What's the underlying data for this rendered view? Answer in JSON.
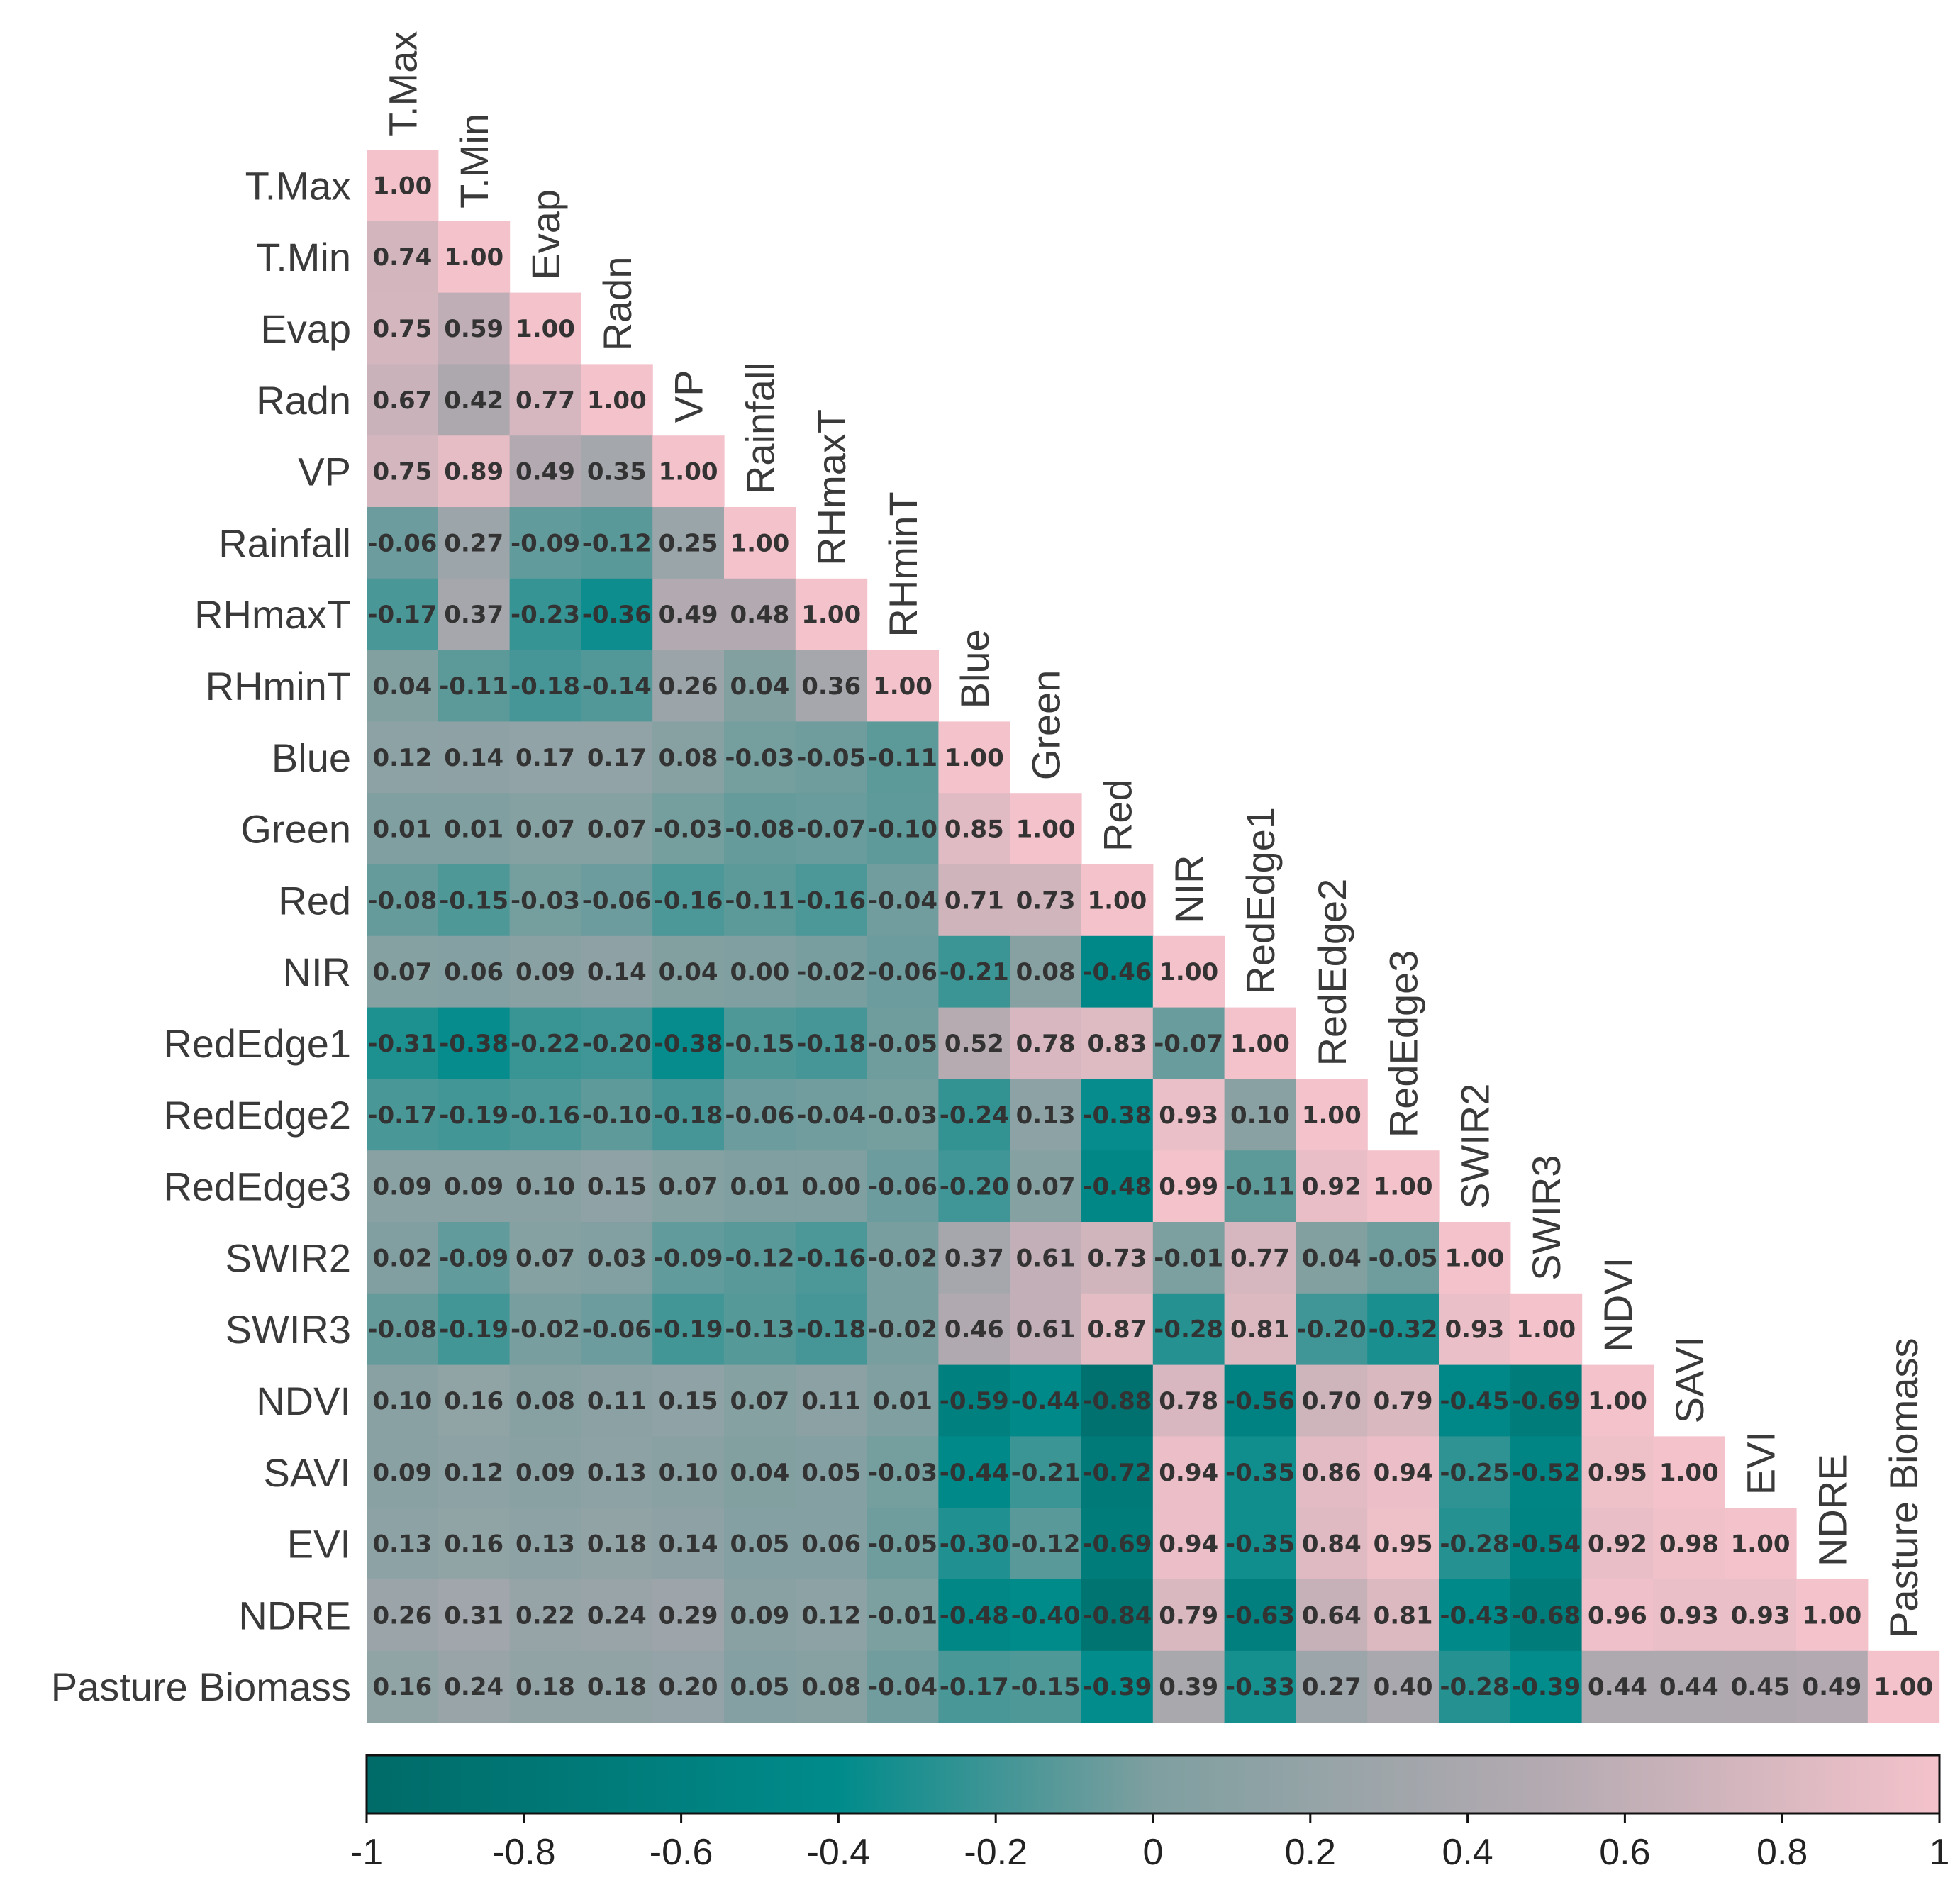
{
  "chart_data": {
    "type": "heatmap",
    "title": "",
    "variables": [
      "T.Max",
      "T.Min",
      "Evap",
      "Radn",
      "VP",
      "Rainfall",
      "RHmaxT",
      "RHminT",
      "Blue",
      "Green",
      "Red",
      "NIR",
      "RedEdge1",
      "RedEdge2",
      "RedEdge3",
      "SWIR2",
      "SWIR3",
      "NDVI",
      "SAVI",
      "EVI",
      "NDRE",
      "Pasture Biomass"
    ],
    "matrix_lower": [
      [
        1.0
      ],
      [
        0.74,
        1.0
      ],
      [
        0.75,
        0.59,
        1.0
      ],
      [
        0.67,
        0.42,
        0.77,
        1.0
      ],
      [
        0.75,
        0.89,
        0.49,
        0.35,
        1.0
      ],
      [
        -0.06,
        0.27,
        -0.09,
        -0.12,
        0.25,
        1.0
      ],
      [
        -0.17,
        0.37,
        -0.23,
        -0.36,
        0.49,
        0.48,
        1.0
      ],
      [
        0.04,
        -0.11,
        -0.18,
        -0.14,
        0.26,
        0.04,
        0.36,
        1.0
      ],
      [
        0.12,
        0.14,
        0.17,
        0.17,
        0.08,
        -0.03,
        -0.05,
        -0.11,
        1.0
      ],
      [
        0.01,
        0.01,
        0.07,
        0.07,
        -0.03,
        -0.08,
        -0.07,
        -0.1,
        0.85,
        1.0
      ],
      [
        -0.08,
        -0.15,
        -0.03,
        -0.06,
        -0.16,
        -0.11,
        -0.16,
        -0.04,
        0.71,
        0.73,
        1.0
      ],
      [
        0.07,
        0.06,
        0.09,
        0.14,
        0.04,
        0.0,
        -0.02,
        -0.06,
        -0.21,
        0.08,
        -0.46,
        1.0
      ],
      [
        -0.31,
        -0.38,
        -0.22,
        -0.2,
        -0.38,
        -0.15,
        -0.18,
        -0.05,
        0.52,
        0.78,
        0.83,
        -0.07,
        1.0
      ],
      [
        -0.17,
        -0.19,
        -0.16,
        -0.1,
        -0.18,
        -0.06,
        -0.04,
        -0.03,
        -0.24,
        0.13,
        -0.38,
        0.93,
        0.1,
        1.0
      ],
      [
        0.09,
        0.09,
        0.1,
        0.15,
        0.07,
        0.01,
        0.0,
        -0.06,
        -0.2,
        0.07,
        -0.48,
        0.99,
        -0.11,
        0.92,
        1.0
      ],
      [
        0.02,
        -0.09,
        0.07,
        0.03,
        -0.09,
        -0.12,
        -0.16,
        -0.02,
        0.37,
        0.61,
        0.73,
        -0.01,
        0.77,
        0.04,
        -0.05,
        1.0
      ],
      [
        -0.08,
        -0.19,
        -0.02,
        -0.06,
        -0.19,
        -0.13,
        -0.18,
        -0.02,
        0.46,
        0.61,
        0.87,
        -0.28,
        0.81,
        -0.2,
        -0.32,
        0.93,
        1.0
      ],
      [
        0.1,
        0.16,
        0.08,
        0.11,
        0.15,
        0.07,
        0.11,
        0.01,
        -0.59,
        -0.44,
        -0.88,
        0.78,
        -0.56,
        0.7,
        0.79,
        -0.45,
        -0.69,
        1.0
      ],
      [
        0.09,
        0.12,
        0.09,
        0.13,
        0.1,
        0.04,
        0.05,
        -0.03,
        -0.44,
        -0.21,
        -0.72,
        0.94,
        -0.35,
        0.86,
        0.94,
        -0.25,
        -0.52,
        0.95,
        1.0
      ],
      [
        0.13,
        0.16,
        0.13,
        0.18,
        0.14,
        0.05,
        0.06,
        -0.05,
        -0.3,
        -0.12,
        -0.69,
        0.94,
        -0.35,
        0.84,
        0.95,
        -0.28,
        -0.54,
        0.92,
        0.98,
        1.0
      ],
      [
        0.26,
        0.31,
        0.22,
        0.24,
        0.29,
        0.09,
        0.12,
        -0.01,
        -0.48,
        -0.4,
        -0.84,
        0.79,
        -0.63,
        0.64,
        0.81,
        -0.43,
        -0.68,
        0.96,
        0.93,
        0.93,
        1.0
      ],
      [
        0.16,
        0.24,
        0.18,
        0.18,
        0.2,
        0.05,
        0.08,
        -0.04,
        -0.17,
        -0.15,
        -0.39,
        0.39,
        -0.33,
        0.27,
        0.4,
        -0.28,
        -0.39,
        0.44,
        0.44,
        0.45,
        0.49,
        1.0
      ]
    ],
    "colorbar": {
      "range": [
        -1,
        1
      ],
      "ticks": [
        -1,
        -0.8,
        -0.6,
        -0.4,
        -0.2,
        0,
        0.2,
        0.4,
        0.6,
        0.8,
        1
      ],
      "tick_labels": [
        "-1",
        "-0.8",
        "-0.6",
        "-0.4",
        "-0.2",
        "0",
        "0.2",
        "0.4",
        "0.6",
        "0.8",
        "1"
      ],
      "colors": {
        "negative": "#006b68",
        "mid_negative": "#008b8b",
        "neutral": "#7f9fa0",
        "positive": "#f4c2cb"
      }
    },
    "legend_placement": "bottom"
  }
}
